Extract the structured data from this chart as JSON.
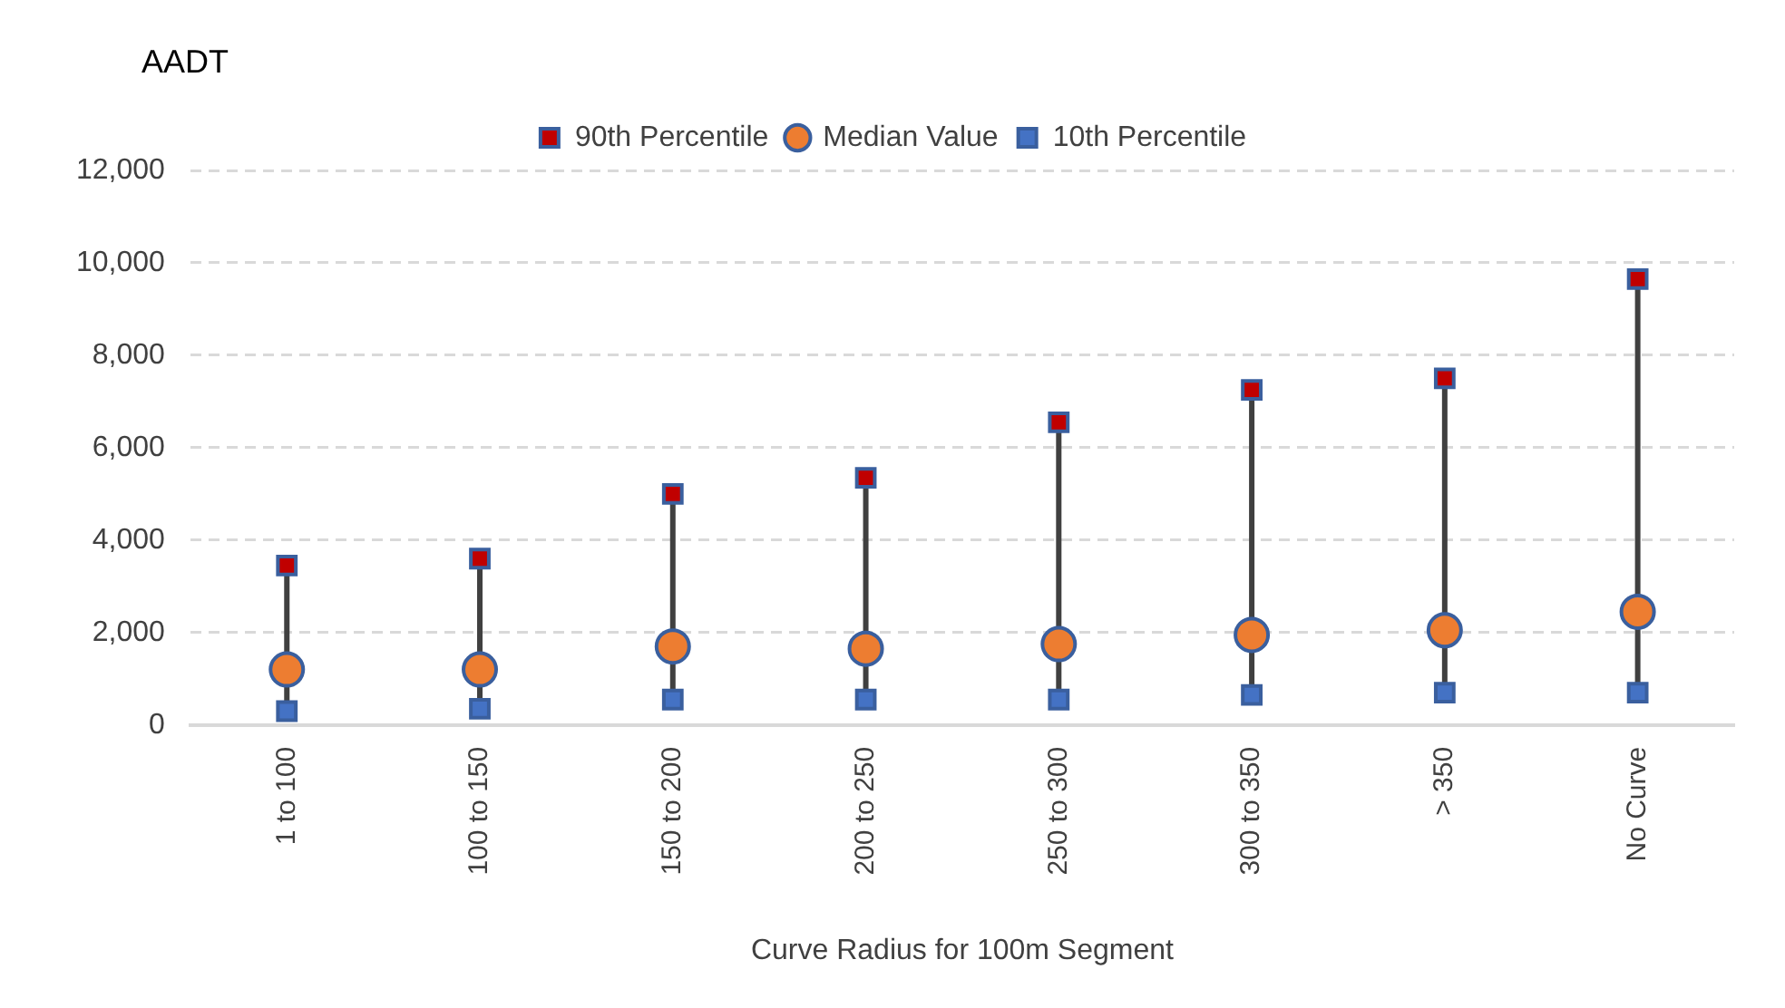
{
  "chart_data": {
    "type": "scatter",
    "ylabel": "AADT",
    "xlabel": "Curve Radius for 100m Segment",
    "categories": [
      "1 to 100",
      "100 to 150",
      "150 to 200",
      "200 to 250",
      "250 to 300",
      "300 to 350",
      "> 350",
      "No Curve"
    ],
    "series": [
      {
        "name": "90th Percentile",
        "color": "#c00000",
        "marker": "square",
        "values": [
          3450,
          3600,
          5000,
          5350,
          6550,
          7250,
          7500,
          9650
        ]
      },
      {
        "name": "Median Value",
        "color": "#ed7d31",
        "marker": "circle",
        "values": [
          1200,
          1200,
          1700,
          1650,
          1750,
          1950,
          2050,
          2450
        ]
      },
      {
        "name": "10th Percentile",
        "color": "#4472c4",
        "marker": "square",
        "values": [
          300,
          350,
          550,
          550,
          550,
          650,
          700,
          700
        ]
      }
    ],
    "ylim": [
      0,
      12000
    ],
    "yticks": [
      {
        "value": 0,
        "label": "0"
      },
      {
        "value": 2000,
        "label": "2,000"
      },
      {
        "value": 4000,
        "label": "4,000"
      },
      {
        "value": 6000,
        "label": "6,000"
      },
      {
        "value": 8000,
        "label": "8,000"
      },
      {
        "value": 10000,
        "label": "10,000"
      },
      {
        "value": 12000,
        "label": "12,000"
      }
    ],
    "grid": "y",
    "legend": "top"
  }
}
